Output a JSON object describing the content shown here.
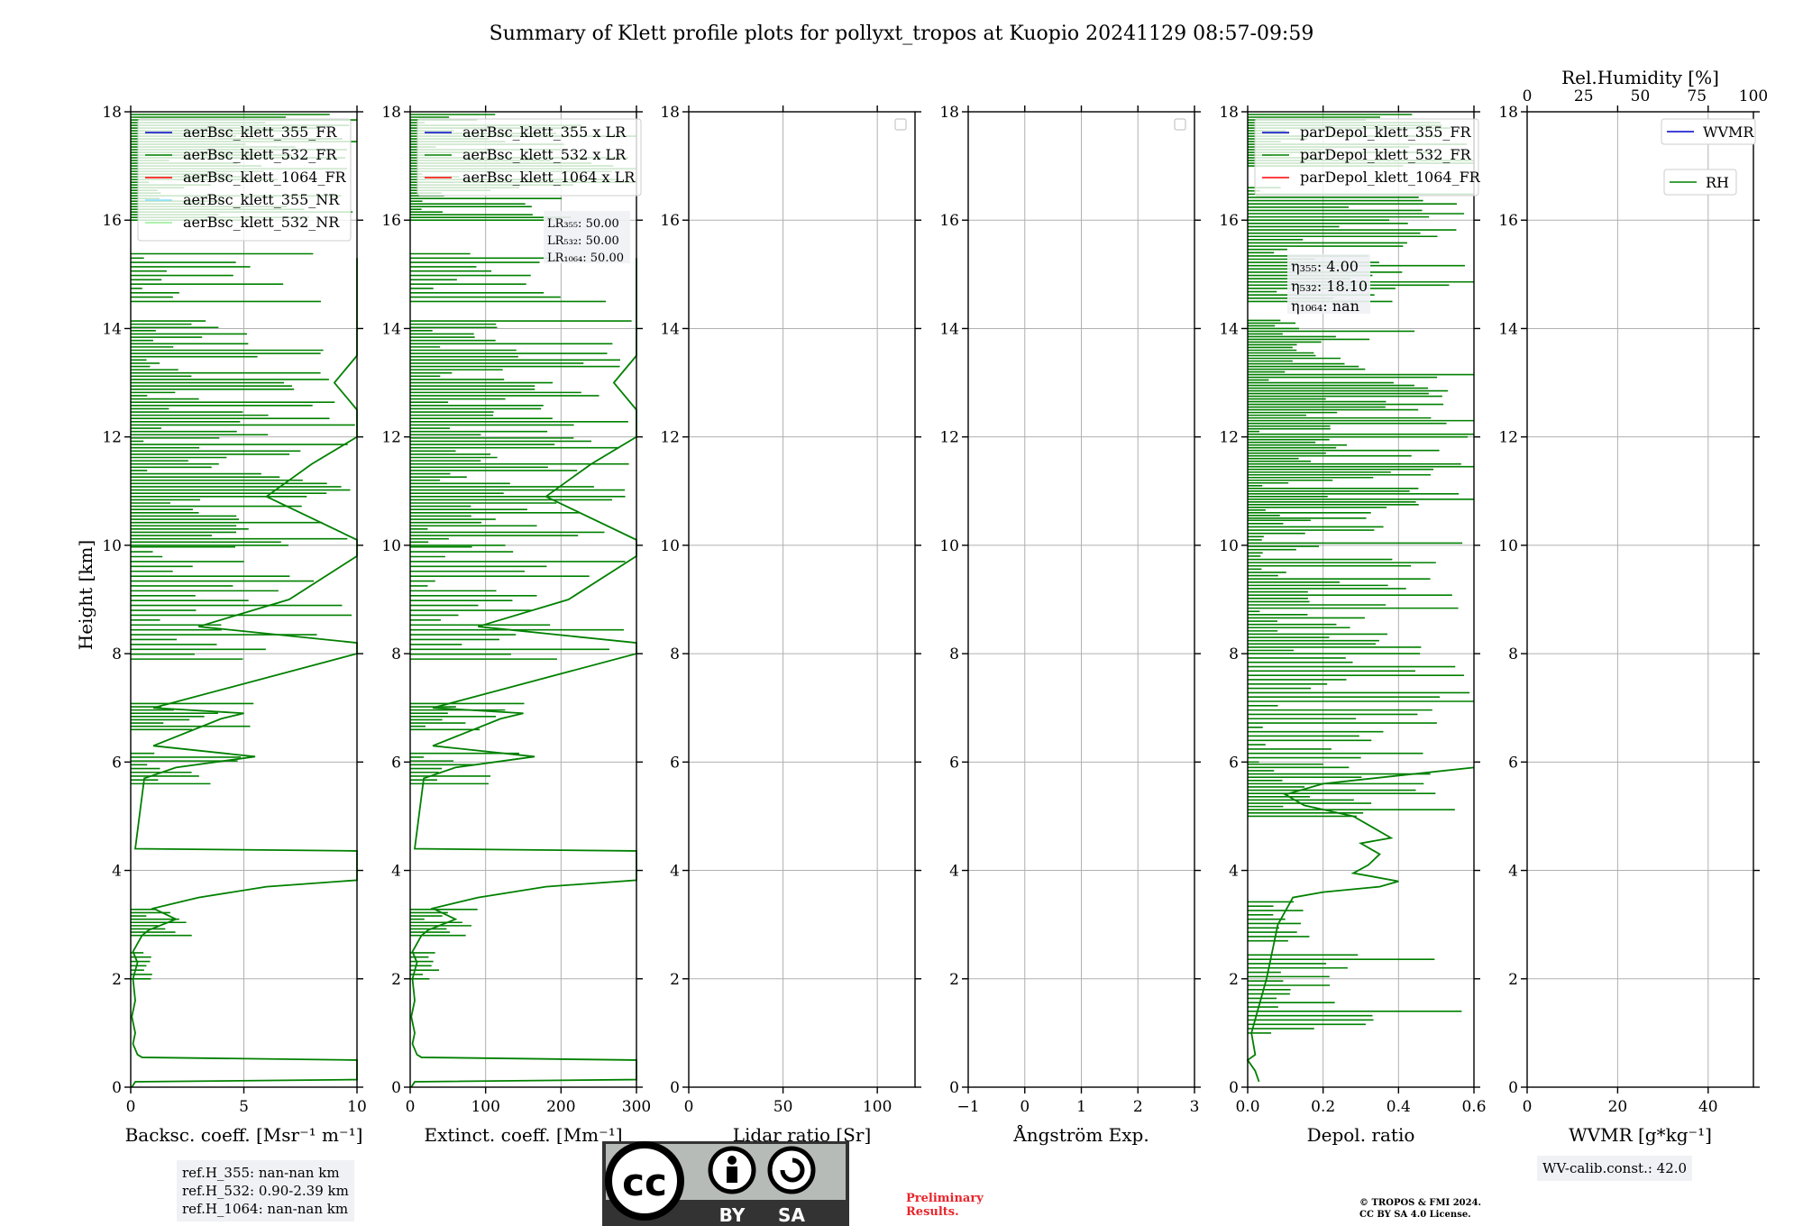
{
  "title": "Summary of Klett profile plots for pollyxt_tropos at Kuopio 20241129 08:57-09:59",
  "ylabel": "Height [km]",
  "colors": {
    "c355": "#0000cc",
    "c532": "#008000",
    "c1064": "#ff0000",
    "c355nr": "#80e0ff",
    "c532nr": "#90ee90"
  },
  "chart_data": [
    {
      "type": "line",
      "xlabel": "Backsc. coeff. [Msr⁻¹ m⁻¹]",
      "xlim": [
        0,
        10
      ],
      "ylim": [
        0,
        18
      ],
      "xticks": [
        {
          "v": 0,
          "t": "0"
        },
        {
          "v": 5,
          "t": "5"
        },
        {
          "v": 10,
          "t": "10"
        }
      ],
      "legend": [
        {
          "name": "aerBsc_klett_355_FR",
          "color": "#0000cc"
        },
        {
          "name": "aerBsc_klett_532_FR",
          "color": "#008000"
        },
        {
          "name": "aerBsc_klett_1064_FR",
          "color": "#ff0000"
        },
        {
          "name": "aerBsc_klett_355_NR",
          "color": "#80e0ff"
        },
        {
          "name": "aerBsc_klett_532_NR",
          "color": "#90ee90"
        }
      ],
      "series_532_fr": [
        [
          0.05,
          0.0
        ],
        [
          0.2,
          0.1
        ],
        [
          10,
          0.14
        ],
        [
          10,
          0.5
        ],
        [
          0.5,
          0.55
        ],
        [
          0.3,
          0.6
        ],
        [
          0.1,
          0.8
        ],
        [
          0.2,
          1.0
        ],
        [
          0.05,
          1.3
        ],
        [
          0.2,
          1.6
        ],
        [
          0.1,
          2.0
        ],
        [
          0.3,
          2.3
        ],
        [
          0.1,
          2.5
        ],
        [
          0.5,
          2.8
        ],
        [
          0.8,
          2.9
        ],
        [
          2.0,
          3.1
        ],
        [
          1.0,
          3.3
        ],
        [
          3.0,
          3.5
        ],
        [
          6.0,
          3.7
        ],
        [
          10,
          3.82
        ],
        [
          10,
          4.36
        ],
        [
          0.2,
          4.4
        ],
        [
          0.6,
          5.7
        ],
        [
          2.0,
          5.9
        ],
        [
          5.5,
          6.1
        ],
        [
          1.0,
          6.3
        ],
        [
          4.0,
          6.8
        ],
        [
          5.0,
          6.9
        ],
        [
          1.0,
          7.0
        ],
        [
          10,
          8.0
        ],
        [
          10,
          8.2
        ],
        [
          3,
          8.5
        ],
        [
          7,
          9.0
        ],
        [
          10,
          9.8
        ],
        [
          10,
          10.1
        ],
        [
          6,
          10.9
        ],
        [
          8,
          11.5
        ],
        [
          10,
          12.0
        ],
        [
          10,
          12.5
        ],
        [
          9,
          13.0
        ],
        [
          10,
          13.5
        ],
        [
          10,
          14.0
        ],
        [
          10,
          14.3
        ],
        [
          10,
          15.0
        ],
        [
          10,
          15.3
        ]
      ]
    },
    {
      "type": "line",
      "xlabel": "Extinct. coeff. [Mm⁻¹]",
      "xlim": [
        0,
        300
      ],
      "ylim": [
        0,
        18
      ],
      "xticks": [
        {
          "v": 0,
          "t": "0"
        },
        {
          "v": 100,
          "t": "100"
        },
        {
          "v": 200,
          "t": "200"
        },
        {
          "v": 300,
          "t": "300"
        }
      ],
      "legend": [
        {
          "name": "aerBsc_klett_355 x LR",
          "color": "#0000cc"
        },
        {
          "name": "aerBsc_klett_532 x LR",
          "color": "#008000"
        },
        {
          "name": "aerBsc_klett_1064 x LR",
          "color": "#ff0000"
        }
      ],
      "lr_labels": [
        "LR₃₅₅: 50.00",
        "LR₅₃₂: 50.00",
        "LR₁₀₆₄: 50.00"
      ]
    },
    {
      "type": "line",
      "xlabel": "Lidar ratio [Sr]",
      "xlim": [
        0,
        120
      ],
      "ylim": [
        0,
        18
      ],
      "xticks": [
        {
          "v": 0,
          "t": "0"
        },
        {
          "v": 50,
          "t": "50"
        },
        {
          "v": 100,
          "t": "100"
        }
      ],
      "legend": []
    },
    {
      "type": "line",
      "xlabel": "Ångström Exp.",
      "xlim": [
        -1,
        3
      ],
      "ylim": [
        0,
        18
      ],
      "xticks": [
        {
          "v": -1,
          "t": "−1"
        },
        {
          "v": 0,
          "t": "0"
        },
        {
          "v": 1,
          "t": "1"
        },
        {
          "v": 2,
          "t": "2"
        },
        {
          "v": 3,
          "t": "3"
        }
      ],
      "legend": []
    },
    {
      "type": "line",
      "xlabel": "Depol. ratio",
      "xlim": [
        0,
        0.6
      ],
      "ylim": [
        0,
        18
      ],
      "xticks": [
        {
          "v": 0,
          "t": "0.0"
        },
        {
          "v": 0.2,
          "t": "0.2"
        },
        {
          "v": 0.4,
          "t": "0.4"
        },
        {
          "v": 0.6,
          "t": "0.6"
        }
      ],
      "legend": [
        {
          "name": "parDepol_klett_355_FR",
          "color": "#0000cc"
        },
        {
          "name": "parDepol_klett_532_FR",
          "color": "#008000"
        },
        {
          "name": "parDepol_klett_1064_FR",
          "color": "#ff0000"
        }
      ],
      "eta_labels": [
        "η₃₅₅: 4.00",
        "η₅₃₂: 18.10",
        "η₁₀₆₄: nan"
      ],
      "series_532": [
        [
          0.03,
          0.1
        ],
        [
          0.02,
          0.3
        ],
        [
          0.0,
          0.5
        ],
        [
          0.02,
          0.6
        ],
        [
          0.01,
          1.0
        ],
        [
          0.05,
          2.0
        ],
        [
          0.08,
          3.0
        ],
        [
          0.12,
          3.5
        ],
        [
          0.2,
          3.6
        ],
        [
          0.35,
          3.7
        ],
        [
          0.4,
          3.8
        ],
        [
          0.28,
          3.95
        ],
        [
          0.32,
          4.1
        ],
        [
          0.35,
          4.3
        ],
        [
          0.3,
          4.5
        ],
        [
          0.38,
          4.6
        ],
        [
          0.33,
          4.8
        ],
        [
          0.28,
          5.0
        ],
        [
          0.15,
          5.2
        ],
        [
          0.1,
          5.4
        ],
        [
          0.2,
          5.6
        ],
        [
          0.6,
          5.9
        ]
      ]
    },
    {
      "type": "line",
      "xlabel": "WVMR [g*kg⁻¹]",
      "xlim": [
        0,
        50
      ],
      "ylim": [
        0,
        18
      ],
      "xticks": [
        {
          "v": 0,
          "t": "0"
        },
        {
          "v": 20,
          "t": "20"
        },
        {
          "v": 40,
          "t": "40"
        }
      ],
      "top_xlabel": "Rel.Humidity [%]",
      "top_xlim": [
        0,
        100
      ],
      "top_xticks": [
        {
          "v": 0,
          "t": "0"
        },
        {
          "v": 25,
          "t": "25"
        },
        {
          "v": 50,
          "t": "50"
        },
        {
          "v": 75,
          "t": "75"
        },
        {
          "v": 100,
          "t": "100"
        }
      ],
      "legend": [
        {
          "name": "WVMR",
          "color": "#0000cc"
        },
        {
          "name": "RH",
          "color": "#008000"
        }
      ]
    }
  ],
  "yticks": [
    0,
    2,
    4,
    6,
    8,
    10,
    12,
    14,
    16,
    18
  ],
  "footer": {
    "ref_lines": [
      "ref.H_355: nan-nan km",
      "ref.H_532: 0.90-2.39 km",
      "ref.H_1064: nan-nan km"
    ],
    "cc_by": "BY",
    "cc_sa": "SA",
    "cc_mark": "cc",
    "preliminary": [
      "Preliminary",
      "Results."
    ],
    "copyright": [
      "© TROPOS & FMI 2024.",
      "CC BY SA 4.0 License."
    ],
    "wv_calib": "WV-calib.const.: 42.0"
  }
}
